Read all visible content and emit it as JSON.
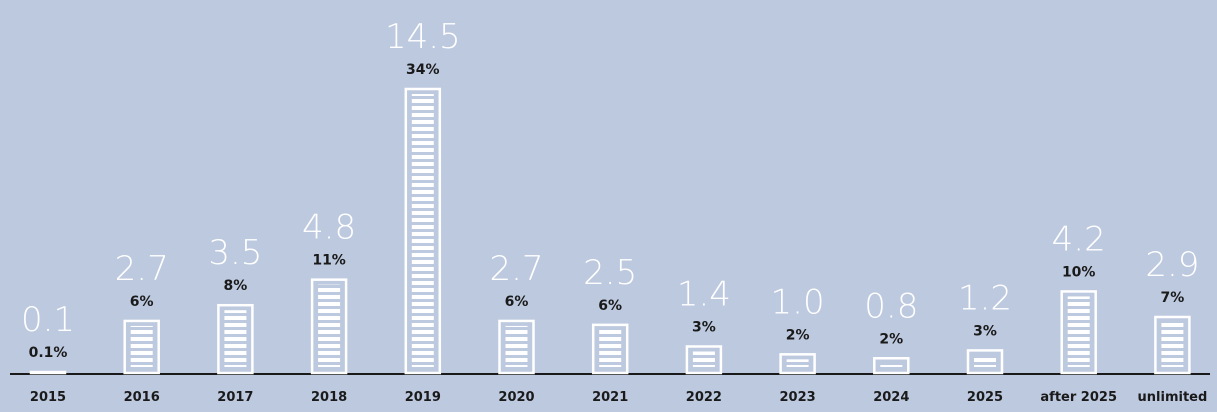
{
  "chart_data": {
    "type": "bar",
    "categories": [
      "2015",
      "2016",
      "2017",
      "2018",
      "2019",
      "2020",
      "2021",
      "2022",
      "2023",
      "2024",
      "2025",
      "after 2025",
      "unlimited"
    ],
    "values": [
      0.1,
      2.7,
      3.5,
      4.8,
      14.5,
      2.7,
      2.5,
      1.4,
      1.0,
      0.8,
      1.2,
      4.2,
      2.9
    ],
    "value_labels": [
      "0.1",
      "2.7",
      "3.5",
      "4.8",
      "14.5",
      "2.7",
      "2.5",
      "1.4",
      "1.0",
      "0.8",
      "1.2",
      "4.2",
      "2.9"
    ],
    "shares": [
      0.1,
      6,
      8,
      11,
      34,
      6,
      6,
      3,
      2,
      2,
      3,
      10,
      7
    ],
    "share_labels": [
      "0.1%",
      "6%",
      "8%",
      "11%",
      "34%",
      "6%",
      "6%",
      "3%",
      "2%",
      "2%",
      "3%",
      "10%",
      "7%"
    ],
    "color": "#ffffff"
  }
}
